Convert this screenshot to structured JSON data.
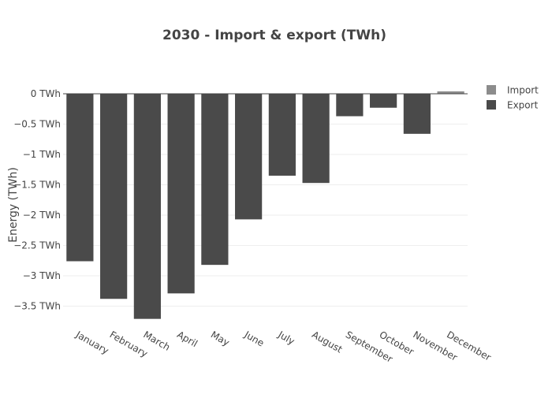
{
  "chart_data": {
    "type": "bar",
    "title": "2030 - Import & export (TWh)",
    "xlabel": "",
    "ylabel": "Energy (TWh)",
    "ylim": [
      -3.9,
      0.1
    ],
    "yticks": [
      {
        "value": 0,
        "label": "0 TWh"
      },
      {
        "value": -0.5,
        "label": "−0.5 TWh"
      },
      {
        "value": -1,
        "label": "−1 TWh"
      },
      {
        "value": -1.5,
        "label": "−1.5 TWh"
      },
      {
        "value": -2,
        "label": "−2 TWh"
      },
      {
        "value": -2.5,
        "label": "−2.5 TWh"
      },
      {
        "value": -3,
        "label": "−3 TWh"
      },
      {
        "value": -3.5,
        "label": "−3.5 TWh"
      }
    ],
    "categories": [
      "January",
      "February",
      "March",
      "April",
      "May",
      "June",
      "July",
      "August",
      "September",
      "October",
      "November",
      "December"
    ],
    "barmode": "relative",
    "grid": true,
    "legend_position": "top-right",
    "series": [
      {
        "name": "Import",
        "color": "#8c8c8c",
        "values": [
          0,
          0,
          0,
          0,
          0,
          0,
          0,
          0,
          0,
          0,
          0,
          0.04
        ]
      },
      {
        "name": "Export",
        "color": "#4a4a4a",
        "values": [
          -2.76,
          -3.38,
          -3.71,
          -3.29,
          -2.82,
          -2.07,
          -1.35,
          -1.47,
          -0.37,
          -0.23,
          -0.66,
          0
        ]
      }
    ]
  }
}
